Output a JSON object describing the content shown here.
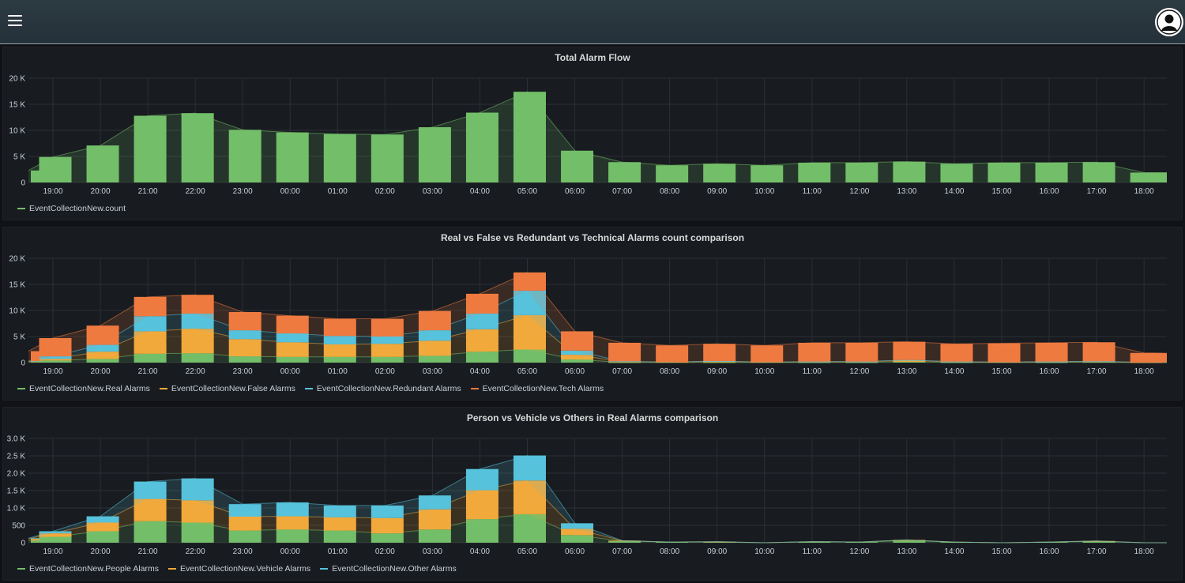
{
  "header": {
    "title": "",
    "menu_icon": "hamburger-menu-icon",
    "avatar_icon": "user-avatar-icon"
  },
  "chart_data": [
    {
      "type": "bar",
      "title": "Total Alarm Flow",
      "categories": [
        "19:00",
        "20:00",
        "21:00",
        "22:00",
        "23:00",
        "00:00",
        "01:00",
        "02:00",
        "03:00",
        "04:00",
        "05:00",
        "06:00",
        "07:00",
        "08:00",
        "09:00",
        "10:00",
        "11:00",
        "12:00",
        "13:00",
        "14:00",
        "15:00",
        "16:00",
        "17:00",
        "18:00"
      ],
      "tick_labels": [
        "0",
        "5 K",
        "10 K",
        "15 K",
        "20 K"
      ],
      "ylim": [
        0,
        20000
      ],
      "yticks": [
        0,
        5000,
        10000,
        15000,
        20000
      ],
      "edge_start": 2300,
      "edge_end": 1900,
      "series": [
        {
          "name": "EventCollectionNew.count",
          "color": "#73bf69",
          "values": [
            4900,
            7100,
            12800,
            13300,
            10100,
            9600,
            9300,
            9200,
            10600,
            13400,
            17400,
            6100,
            3900,
            3300,
            3600,
            3300,
            3800,
            3800,
            4000,
            3600,
            3800,
            3800,
            3900,
            1900
          ]
        }
      ],
      "grid": true,
      "legend_position": "bottom-left"
    },
    {
      "type": "bar",
      "stacked": true,
      "title": "Real vs False vs Redundant vs Technical Alarms count comparison",
      "categories": [
        "19:00",
        "20:00",
        "21:00",
        "22:00",
        "23:00",
        "00:00",
        "01:00",
        "02:00",
        "03:00",
        "04:00",
        "05:00",
        "06:00",
        "07:00",
        "08:00",
        "09:00",
        "10:00",
        "11:00",
        "12:00",
        "13:00",
        "14:00",
        "15:00",
        "16:00",
        "17:00",
        "18:00"
      ],
      "tick_labels": [
        "0",
        "5 K",
        "10 K",
        "15 K",
        "20 K"
      ],
      "ylim": [
        0,
        20000
      ],
      "yticks": [
        0,
        5000,
        10000,
        15000,
        20000
      ],
      "series": [
        {
          "name": "EventCollectionNew.Real Alarms",
          "color": "#73bf69",
          "values": [
            400,
            700,
            1700,
            1800,
            1200,
            1100,
            1100,
            1100,
            1300,
            2100,
            2500,
            600,
            50,
            0,
            50,
            0,
            50,
            50,
            150,
            50,
            0,
            50,
            100,
            0
          ],
          "edge_start": 100,
          "edge_end": 0
        },
        {
          "name": "EventCollectionNew.False Alarms",
          "color": "#f2a93b",
          "values": [
            300,
            1400,
            4300,
            4700,
            3300,
            2800,
            2400,
            2500,
            2900,
            4300,
            6600,
            900,
            150,
            100,
            200,
            100,
            100,
            100,
            250,
            100,
            100,
            100,
            100,
            50
          ],
          "edge_start": 100,
          "edge_end": 50
        },
        {
          "name": "EventCollectionNew.Redundant Alarms",
          "color": "#56c2dc",
          "values": [
            500,
            1300,
            2900,
            2900,
            1700,
            1700,
            1600,
            1400,
            2000,
            3000,
            4700,
            800,
            50,
            0,
            50,
            0,
            50,
            50,
            100,
            50,
            0,
            50,
            50,
            0
          ],
          "edge_start": 100,
          "edge_end": 0
        },
        {
          "name": "EventCollectionNew.Tech Alarms",
          "color": "#ef7a40",
          "values": [
            3500,
            3700,
            3700,
            3600,
            3500,
            3400,
            3300,
            3400,
            3700,
            3800,
            3500,
            3700,
            3550,
            3200,
            3300,
            3200,
            3600,
            3600,
            3500,
            3400,
            3600,
            3600,
            3650,
            1800
          ],
          "edge_start": 1900,
          "edge_end": 1750
        }
      ],
      "grid": true,
      "legend_position": "bottom-left"
    },
    {
      "type": "bar",
      "stacked": true,
      "title": "Person vs Vehicle vs Others in Real Alarms comparison",
      "categories": [
        "19:00",
        "20:00",
        "21:00",
        "22:00",
        "23:00",
        "00:00",
        "01:00",
        "02:00",
        "03:00",
        "04:00",
        "05:00",
        "06:00",
        "07:00",
        "08:00",
        "09:00",
        "10:00",
        "11:00",
        "12:00",
        "13:00",
        "14:00",
        "15:00",
        "16:00",
        "17:00",
        "18:00"
      ],
      "tick_labels": [
        "0",
        "500",
        "1.0 K",
        "1.5 K",
        "2.0 K",
        "2.5 K",
        "3.0 K"
      ],
      "ylim": [
        0,
        3000
      ],
      "yticks": [
        0,
        500,
        1000,
        1500,
        2000,
        2500,
        3000
      ],
      "series": [
        {
          "name": "EventCollectionNew.People Alarms",
          "color": "#73bf69",
          "values": [
            170,
            330,
            620,
            580,
            350,
            380,
            350,
            270,
            380,
            680,
            820,
            220,
            50,
            20,
            20,
            0,
            30,
            20,
            60,
            20,
            0,
            20,
            40,
            0
          ],
          "edge_start": 60,
          "edge_end": 0
        },
        {
          "name": "EventCollectionNew.Vehicle Alarms",
          "color": "#f2a93b",
          "values": [
            100,
            250,
            640,
            640,
            400,
            380,
            380,
            440,
            580,
            830,
            970,
            180,
            10,
            0,
            10,
            0,
            0,
            0,
            20,
            0,
            0,
            0,
            10,
            0
          ],
          "edge_start": 50,
          "edge_end": 0
        },
        {
          "name": "EventCollectionNew.Other Alarms",
          "color": "#56c2dc",
          "values": [
            60,
            180,
            500,
            630,
            360,
            400,
            340,
            360,
            400,
            610,
            720,
            160,
            0,
            0,
            0,
            0,
            0,
            0,
            0,
            0,
            0,
            0,
            0,
            0
          ],
          "edge_start": 20,
          "edge_end": 0
        }
      ],
      "grid": true,
      "legend_position": "bottom-left"
    }
  ]
}
